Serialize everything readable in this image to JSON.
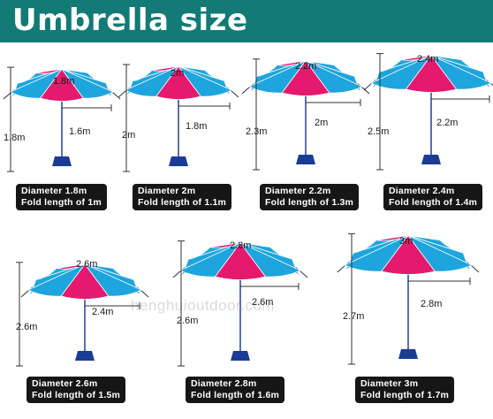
{
  "title": "Umbrella size",
  "watermark": "henghuioutdoor.com",
  "colors": {
    "banner": "#137a76",
    "blue": "#1ea5dd",
    "magenta": "#e5196d",
    "base": "#1a3c96",
    "pole": "#5b6fb2"
  },
  "umbrellas": [
    {
      "arc_label": "1.8m",
      "radius_label": "1.6m",
      "height_label": "1.8m",
      "caption_line1": "Diameter 1.8m",
      "caption_line2": "Fold length of 1m"
    },
    {
      "arc_label": "2m",
      "radius_label": "1.8m",
      "height_label": "2m",
      "caption_line1": "Diameter 2m",
      "caption_line2": "Fold length of 1.1m"
    },
    {
      "arc_label": "2.2m",
      "radius_label": "2m",
      "height_label": "2.3m",
      "caption_line1": "Diameter 2.2m",
      "caption_line2": "Fold length of 1.3m"
    },
    {
      "arc_label": "2.4m",
      "radius_label": "2.2m",
      "height_label": "2.5m",
      "caption_line1": "Diameter 2.4m",
      "caption_line2": "Fold length of 1.4m"
    },
    {
      "arc_label": "2.6m",
      "radius_label": "2.4m",
      "height_label": "2.6m",
      "caption_line1": "Diameter 2.6m",
      "caption_line2": "Fold length of 1.5m"
    },
    {
      "arc_label": "2.8m",
      "radius_label": "2.6m",
      "height_label": "2.6m",
      "caption_line1": "Diameter 2.8m",
      "caption_line2": "Fold length of 1.6m"
    },
    {
      "arc_label": "3m",
      "radius_label": "2.8m",
      "height_label": "2.7m",
      "caption_line1": "Diameter 3m",
      "caption_line2": "Fold length of 1.7m"
    }
  ]
}
